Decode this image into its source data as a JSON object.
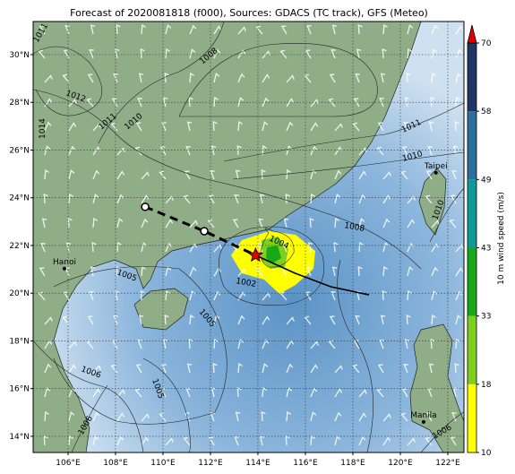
{
  "title": "Forecast of 2020081818 (f000), Sources: GDACS (TC track), GFS (Meteo)",
  "map": {
    "lon_range": [
      104.53,
      122.68
    ],
    "lat_range": [
      13.32,
      31.39
    ],
    "grid": true,
    "lon_ticks": [
      {
        "value": 106,
        "label": "106°E"
      },
      {
        "value": 108,
        "label": "108°E"
      },
      {
        "value": 110,
        "label": "110°E"
      },
      {
        "value": 112,
        "label": "112°E"
      },
      {
        "value": 114,
        "label": "114°E"
      },
      {
        "value": 116,
        "label": "116°E"
      },
      {
        "value": 118,
        "label": "118°E"
      },
      {
        "value": 120,
        "label": "120°E"
      },
      {
        "value": 122,
        "label": "122°E"
      }
    ],
    "lat_ticks": [
      {
        "value": 14,
        "label": "14°N"
      },
      {
        "value": 16,
        "label": "16°N"
      },
      {
        "value": 18,
        "label": "18°N"
      },
      {
        "value": 20,
        "label": "20°N"
      },
      {
        "value": 22,
        "label": "22°N"
      },
      {
        "value": 24,
        "label": "24°N"
      },
      {
        "value": 26,
        "label": "26°N"
      },
      {
        "value": 28,
        "label": "28°N"
      },
      {
        "value": 30,
        "label": "30°N"
      }
    ]
  },
  "places": [
    {
      "name": "Hanoi",
      "lon": 105.85,
      "lat": 21.03
    },
    {
      "name": "Taipei",
      "lon": 121.5,
      "lat": 25.05
    },
    {
      "name": "Manila",
      "lon": 120.98,
      "lat": 14.6
    }
  ],
  "track": {
    "past": [
      {
        "lon": 109.25,
        "lat": 23.62
      },
      {
        "lon": 111.74,
        "lat": 22.6
      }
    ],
    "current": {
      "lon": 113.9,
      "lat": 21.59
    },
    "forecast": [
      {
        "lon": 113.9,
        "lat": 21.59
      },
      {
        "lon": 115.56,
        "lat": 20.84
      },
      {
        "lon": 117.07,
        "lat": 20.27
      },
      {
        "lon": 118.68,
        "lat": 19.93
      }
    ]
  },
  "isobar_labels": [
    1011,
    1012,
    1014,
    1011,
    1010,
    1008,
    1011,
    1010,
    1008,
    1004,
    1010,
    1005,
    1002,
    1005,
    1006,
    1005,
    1006,
    1006
  ],
  "colorbar": {
    "label": "10 m wind speed (m/s)",
    "levels": [
      10,
      18,
      33,
      43,
      49,
      58,
      70
    ],
    "colors": [
      "#ffff00",
      "#7fcf1f",
      "#16a816",
      "#0f9a9a",
      "#2c6f9e",
      "#1f3566"
    ],
    "extend_color": "#e00000"
  }
}
